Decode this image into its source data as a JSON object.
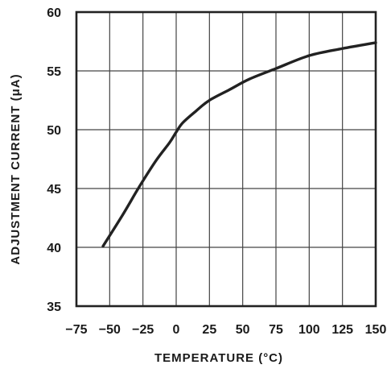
{
  "chart_data": {
    "type": "line",
    "title": "",
    "xlabel": "TEMPERATURE (°C)",
    "ylabel": "ADJUSTMENT CURRENT (μA)",
    "xlim": [
      -75,
      150
    ],
    "ylim": [
      35,
      60
    ],
    "x_ticks": [
      -75,
      -50,
      -25,
      0,
      25,
      50,
      75,
      100,
      125,
      150
    ],
    "y_ticks": [
      35,
      40,
      45,
      50,
      55,
      60
    ],
    "grid": true,
    "legend": "none",
    "series": [
      {
        "x": [
          -55,
          -40,
          -28,
          -15,
          -5,
          0,
          5,
          15,
          25,
          40,
          55,
          75,
          100,
          125,
          150
        ],
        "y": [
          40.1,
          42.8,
          45.1,
          47.4,
          48.9,
          49.8,
          50.6,
          51.6,
          52.5,
          53.4,
          54.3,
          55.2,
          56.3,
          56.9,
          57.4
        ]
      }
    ]
  }
}
